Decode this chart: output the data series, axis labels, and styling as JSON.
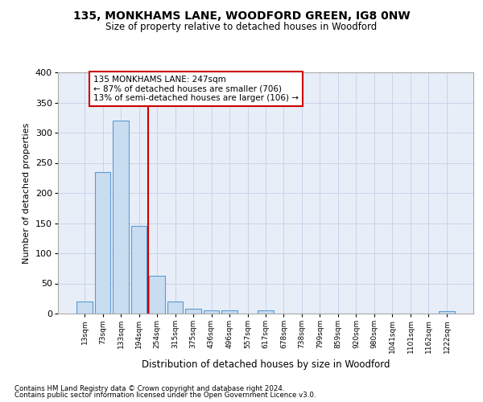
{
  "title1": "135, MONKHAMS LANE, WOODFORD GREEN, IG8 0NW",
  "title2": "Size of property relative to detached houses in Woodford",
  "xlabel": "Distribution of detached houses by size in Woodford",
  "ylabel": "Number of detached properties",
  "categories": [
    "13sqm",
    "73sqm",
    "133sqm",
    "194sqm",
    "254sqm",
    "315sqm",
    "375sqm",
    "436sqm",
    "496sqm",
    "557sqm",
    "617sqm",
    "678sqm",
    "738sqm",
    "799sqm",
    "859sqm",
    "920sqm",
    "980sqm",
    "1041sqm",
    "1101sqm",
    "1162sqm",
    "1222sqm"
  ],
  "values": [
    20,
    235,
    320,
    145,
    63,
    20,
    8,
    6,
    5,
    0,
    5,
    0,
    0,
    0,
    0,
    0,
    0,
    0,
    0,
    0,
    4
  ],
  "bar_color": "#c9ddf0",
  "bar_edgecolor": "#5b9bd5",
  "vline_color": "#cc0000",
  "vline_x_index": 3.5,
  "annotation_text": "135 MONKHAMS LANE: 247sqm\n← 87% of detached houses are smaller (706)\n13% of semi-detached houses are larger (106) →",
  "annotation_box_facecolor": "#ffffff",
  "annotation_box_edgecolor": "#cc0000",
  "grid_color": "#c8d4e8",
  "background_color": "#e8eef8",
  "footer1": "Contains HM Land Registry data © Crown copyright and database right 2024.",
  "footer2": "Contains public sector information licensed under the Open Government Licence v3.0.",
  "ylim": [
    0,
    400
  ],
  "yticks": [
    0,
    50,
    100,
    150,
    200,
    250,
    300,
    350,
    400
  ]
}
